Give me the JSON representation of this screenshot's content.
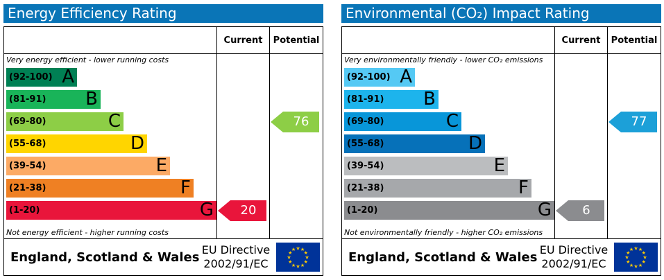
{
  "colors": {
    "title_bar": "#0a75b7",
    "eu_flag_blue": "#003399",
    "eu_flag_star": "#ffcc00"
  },
  "energy": {
    "title": "Energy Efficiency Rating",
    "col_current": "Current",
    "col_potential": "Potential",
    "top_note": "Very energy efficient - lower running costs",
    "bottom_note": "Not energy efficient - higher running costs",
    "bands": [
      {
        "range": "(92-100)",
        "letter": "A",
        "color": "#008054"
      },
      {
        "range": "(81-91)",
        "letter": "B",
        "color": "#19b459"
      },
      {
        "range": "(69-80)",
        "letter": "C",
        "color": "#8dce46"
      },
      {
        "range": "(55-68)",
        "letter": "D",
        "color": "#ffd500"
      },
      {
        "range": "(39-54)",
        "letter": "E",
        "color": "#fcaa65"
      },
      {
        "range": "(21-38)",
        "letter": "F",
        "color": "#ef8023"
      },
      {
        "range": "(1-20)",
        "letter": "G",
        "color": "#e9153b"
      }
    ],
    "current": {
      "value": "20",
      "band": "G",
      "color": "#e9153b"
    },
    "potential": {
      "value": "76",
      "band": "C",
      "color": "#8dce46"
    },
    "footer_region": "England, Scotland & Wales",
    "footer_directive_line1": "EU Directive",
    "footer_directive_line2": "2002/91/EC"
  },
  "environmental": {
    "title": "Environmental (CO₂) Impact Rating",
    "col_current": "Current",
    "col_potential": "Potential",
    "top_note": "Very environmentally friendly - lower CO₂ emissions",
    "bottom_note": "Not environmentally friendly - higher CO₂ emissions",
    "bands": [
      {
        "range": "(92-100)",
        "letter": "A",
        "color": "#55c9f4"
      },
      {
        "range": "(81-91)",
        "letter": "B",
        "color": "#1db4ec"
      },
      {
        "range": "(69-80)",
        "letter": "C",
        "color": "#0896d9"
      },
      {
        "range": "(55-68)",
        "letter": "D",
        "color": "#0671b9"
      },
      {
        "range": "(39-54)",
        "letter": "E",
        "color": "#bbbdbf"
      },
      {
        "range": "(21-38)",
        "letter": "F",
        "color": "#a6a8ab"
      },
      {
        "range": "(1-20)",
        "letter": "G",
        "color": "#8b8c8f"
      }
    ],
    "current": {
      "value": "6",
      "band": "G",
      "color": "#8b8c8f"
    },
    "potential": {
      "value": "77",
      "band": "C",
      "color": "#1ca0d8"
    },
    "footer_region": "England, Scotland & Wales",
    "footer_directive_line1": "EU Directive",
    "footer_directive_line2": "2002/91/EC"
  }
}
